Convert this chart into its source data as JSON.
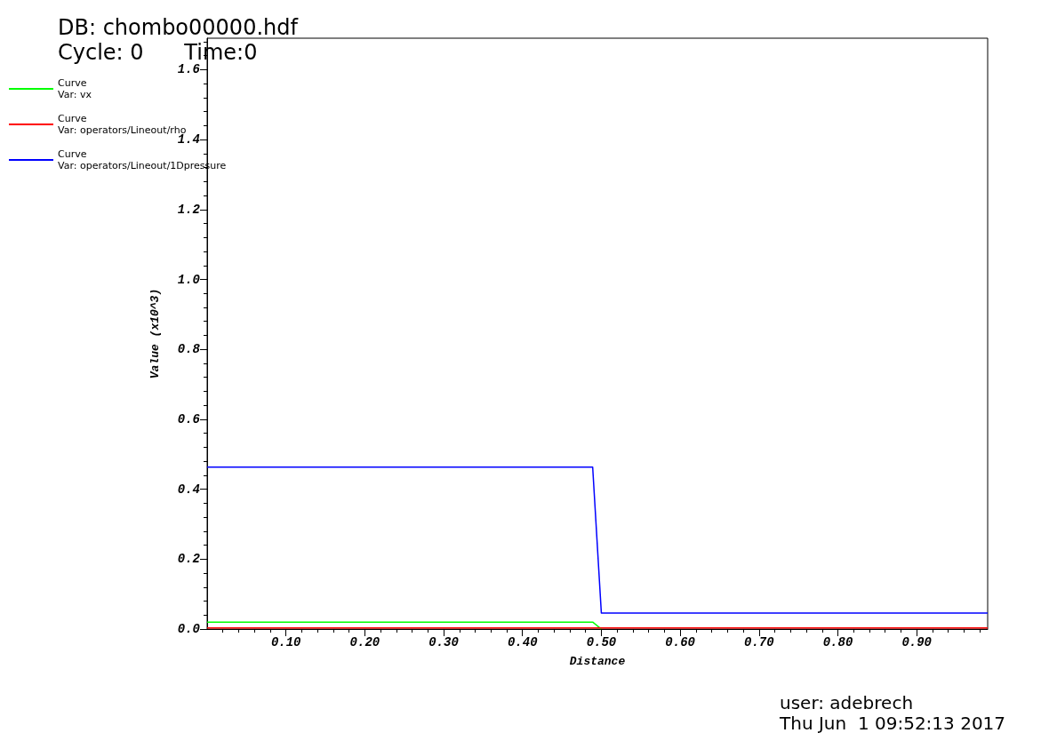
{
  "chart_data": {
    "type": "line",
    "title": "DB: chombo00000.hdf",
    "subtitle": "Cycle: 0      Time:0",
    "xlabel": "Distance",
    "ylabel": "Value (x10^3)",
    "annotations": [
      "user: adebrech",
      "Thu Jun  1 09:52:13 2017"
    ],
    "xlim": [
      0,
      0.99
    ],
    "ylim": [
      0,
      1.69
    ],
    "xticks": [
      {
        "value": 0.1,
        "label": "0.10"
      },
      {
        "value": 0.2,
        "label": "0.20"
      },
      {
        "value": 0.3,
        "label": "0.30"
      },
      {
        "value": 0.4,
        "label": "0.40"
      },
      {
        "value": 0.5,
        "label": "0.50"
      },
      {
        "value": 0.6,
        "label": "0.60"
      },
      {
        "value": 0.7,
        "label": "0.70"
      },
      {
        "value": 0.8,
        "label": "0.80"
      },
      {
        "value": 0.9,
        "label": "0.90"
      }
    ],
    "yticks": [
      {
        "value": 0,
        "label": "0.0"
      },
      {
        "value": 0.2,
        "label": "0.2"
      },
      {
        "value": 0.4,
        "label": "0.4"
      },
      {
        "value": 0.6,
        "label": "0.6"
      },
      {
        "value": 0.8,
        "label": "0.8"
      },
      {
        "value": 1,
        "label": "1.0"
      },
      {
        "value": 1.2,
        "label": "1.2"
      },
      {
        "value": 1.4,
        "label": "1.4"
      },
      {
        "value": 1.6,
        "label": "1.6"
      }
    ],
    "grid": false,
    "legend": "top left",
    "marker": "none",
    "line_style": "solid",
    "series": [
      {
        "name": "Curve\nVar: vx",
        "color": "#00ff00",
        "x": [
          0,
          0.489,
          0.5
        ],
        "values": [
          0.02,
          0.02,
          0
        ]
      },
      {
        "name": "Curve\nVar: operators/Lineout/rho",
        "color": "#ff0000",
        "x": [
          0,
          0.99
        ],
        "values": [
          0.003,
          0.003
        ]
      },
      {
        "name": "Curve\nVar: operators/Lineout/1Dpressure",
        "color": "#0000ff",
        "x": [
          0,
          0.489,
          0.5,
          0.99
        ],
        "values": [
          0.463,
          0.463,
          0.046,
          0.046
        ]
      }
    ]
  }
}
